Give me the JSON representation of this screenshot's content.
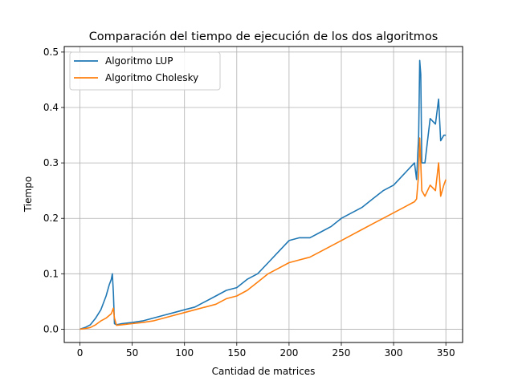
{
  "chart_data": {
    "type": "line",
    "title": "Comparación del tiempo de ejecución de los dos algoritmos",
    "xlabel": "Cantidad de matrices",
    "ylabel": "Tiempo",
    "xlim": [
      -15,
      366
    ],
    "ylim": [
      -0.024,
      0.51
    ],
    "xticks": [
      0,
      50,
      100,
      150,
      200,
      250,
      300,
      350
    ],
    "yticks": [
      0.0,
      0.1,
      0.2,
      0.3,
      0.4,
      0.5
    ],
    "xtick_labels": [
      "0",
      "50",
      "100",
      "150",
      "200",
      "250",
      "300",
      "350"
    ],
    "ytick_labels": [
      "0.0",
      "0.1",
      "0.2",
      "0.3",
      "0.4",
      "0.5"
    ],
    "grid": true,
    "legend_position": "top-left",
    "series": [
      {
        "name": "Algoritmo LUP",
        "color": "#1f77b4",
        "x": [
          0,
          5,
          10,
          15,
          20,
          25,
          28,
          30,
          31,
          32,
          33,
          35,
          40,
          50,
          60,
          70,
          80,
          90,
          100,
          110,
          120,
          130,
          140,
          150,
          160,
          170,
          180,
          190,
          200,
          210,
          220,
          230,
          240,
          250,
          260,
          270,
          280,
          290,
          300,
          310,
          320,
          322,
          324,
          325,
          326,
          327,
          330,
          335,
          340,
          343,
          345,
          348,
          350
        ],
        "values": [
          0.0,
          0.003,
          0.008,
          0.02,
          0.035,
          0.06,
          0.08,
          0.09,
          0.1,
          0.065,
          0.01,
          0.008,
          0.01,
          0.012,
          0.015,
          0.02,
          0.025,
          0.03,
          0.035,
          0.04,
          0.05,
          0.06,
          0.07,
          0.075,
          0.09,
          0.1,
          0.12,
          0.14,
          0.16,
          0.165,
          0.165,
          0.175,
          0.185,
          0.2,
          0.21,
          0.22,
          0.235,
          0.25,
          0.26,
          0.28,
          0.3,
          0.27,
          0.35,
          0.485,
          0.46,
          0.3,
          0.3,
          0.38,
          0.37,
          0.415,
          0.34,
          0.35,
          0.35
        ]
      },
      {
        "name": "Algoritmo Cholesky",
        "color": "#ff7f0e",
        "x": [
          0,
          5,
          10,
          15,
          20,
          25,
          30,
          32,
          33,
          35,
          40,
          50,
          60,
          70,
          80,
          90,
          100,
          110,
          120,
          130,
          140,
          150,
          160,
          170,
          180,
          190,
          200,
          210,
          220,
          230,
          240,
          250,
          260,
          270,
          280,
          290,
          300,
          310,
          320,
          322,
          324,
          325,
          326,
          327,
          330,
          335,
          340,
          343,
          345,
          348,
          350
        ],
        "values": [
          0.0,
          0.001,
          0.003,
          0.008,
          0.015,
          0.02,
          0.028,
          0.038,
          0.02,
          0.007,
          0.008,
          0.01,
          0.012,
          0.015,
          0.02,
          0.025,
          0.03,
          0.035,
          0.04,
          0.045,
          0.055,
          0.06,
          0.07,
          0.085,
          0.1,
          0.11,
          0.12,
          0.125,
          0.13,
          0.14,
          0.15,
          0.16,
          0.17,
          0.18,
          0.19,
          0.2,
          0.21,
          0.22,
          0.23,
          0.235,
          0.28,
          0.345,
          0.3,
          0.25,
          0.24,
          0.26,
          0.25,
          0.3,
          0.24,
          0.26,
          0.27
        ]
      }
    ]
  }
}
